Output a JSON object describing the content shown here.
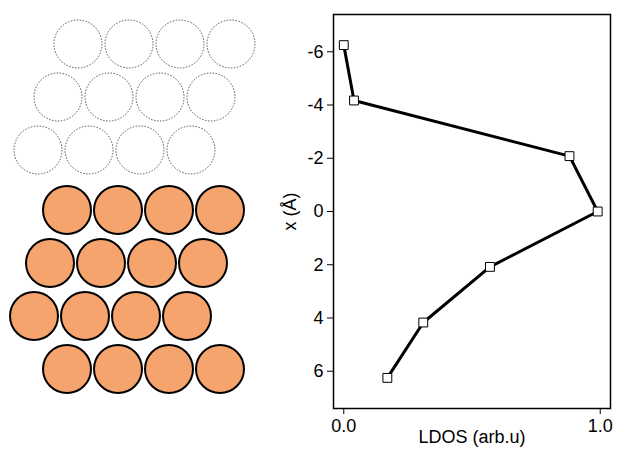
{
  "chart_data": {
    "type": "line",
    "x_label": "LDOS (arb.u)",
    "y_label": "x (Å)",
    "x": [
      0.0,
      0.04,
      0.88,
      0.99,
      0.57,
      0.31,
      0.17
    ],
    "values": [
      -6.25,
      -4.17,
      -2.08,
      0,
      2.08,
      4.17,
      6.25
    ],
    "color": "#000000",
    "marker": "square",
    "line_style": "solid",
    "xlim": [
      -0.04,
      1.04
    ],
    "xticks": [
      {
        "value": 0,
        "label": "0.0"
      },
      {
        "value": 1,
        "label": "1.0"
      }
    ],
    "ylim": [
      7.4,
      -7.4
    ],
    "yticks": [
      -6,
      -4,
      -2,
      0,
      2,
      4,
      6
    ],
    "grid": false
  },
  "schematic": {
    "color": "#f5a46e",
    "rows": [
      {
        "circles": 4,
        "filled": false
      },
      {
        "circles": 4,
        "filled": false
      },
      {
        "circles": 4,
        "filled": false
      },
      {
        "circles": 4,
        "filled": true
      },
      {
        "circles": 4,
        "filled": true
      },
      {
        "circles": 4,
        "filled": true
      },
      {
        "circles": 4,
        "filled": true
      }
    ]
  }
}
